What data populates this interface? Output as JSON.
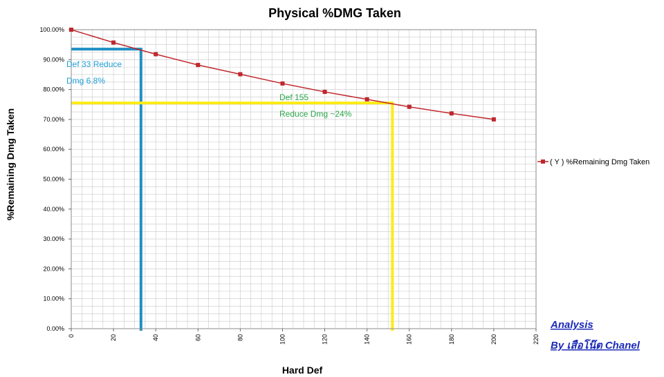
{
  "chart_data": {
    "type": "line",
    "title": "Physical %DMG Taken",
    "xlabel": "Hard Def",
    "ylabel": "%Remaining Dmg Taken",
    "xlim": [
      0,
      220
    ],
    "ylim": [
      0,
      1
    ],
    "x_ticks": [
      "0",
      "20",
      "40",
      "60",
      "80",
      "100",
      "120",
      "140",
      "160",
      "180",
      "200",
      "220"
    ],
    "y_ticks": [
      "0.00%",
      "10.00%",
      "20.00%",
      "30.00%",
      "40.00%",
      "50.00%",
      "60.00%",
      "70.00%",
      "80.00%",
      "90.00%",
      "100.00%"
    ],
    "grid": true,
    "legend_position": "right",
    "series": [
      {
        "name": "( Y ) %Remaining Dmg Taken",
        "color": "#c0272d",
        "marker": "square",
        "x": [
          0,
          20,
          40,
          60,
          80,
          100,
          120,
          140,
          160,
          180,
          200
        ],
        "y": [
          1.0,
          0.957,
          0.918,
          0.882,
          0.851,
          0.82,
          0.792,
          0.767,
          0.742,
          0.72,
          0.7
        ]
      }
    ],
    "reference_lines": [
      {
        "color": "#1f8fc4",
        "x": 33,
        "y": 0.935
      },
      {
        "color": "#ffeb14",
        "x": 152,
        "y": 0.755
      }
    ],
    "annotations": [
      {
        "text": "Def 33 Reduce",
        "color": "#1fa0d8"
      },
      {
        "text": "Dmg 6.8%",
        "color": "#1fa0d8"
      },
      {
        "text": "Def 155",
        "color": "#2aa84a"
      },
      {
        "text": "Reduce Dmg ~24%",
        "color": "#2aa84a"
      }
    ]
  },
  "credit": {
    "line1": "Analysis",
    "line2": "By เสือโน๊ต   Chanel",
    "color": "#1c2bb8"
  }
}
